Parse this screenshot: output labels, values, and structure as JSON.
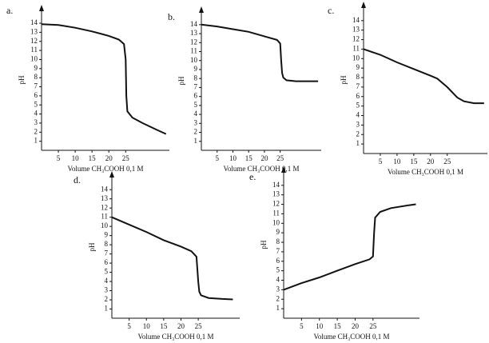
{
  "chart_data": [
    {
      "type": "line",
      "title": "a.",
      "xlabel": "Volume CH₃COOH 0,1 M",
      "ylabel": "pH",
      "color": "#111111",
      "x": [
        0,
        5,
        10,
        15,
        20,
        23,
        24.5,
        25,
        25.2,
        25.5,
        27,
        30,
        34,
        37
      ],
      "values": [
        13.9,
        13.8,
        13.5,
        13.1,
        12.6,
        12.2,
        11.7,
        10,
        6,
        4.3,
        3.6,
        3,
        2.3,
        1.8
      ],
      "xlim": [
        0,
        38
      ],
      "ylim": [
        0,
        15.5
      ],
      "xticks": [
        5,
        10,
        15,
        20,
        25
      ],
      "yticks": [
        1,
        2,
        3,
        4,
        5,
        6,
        7,
        8,
        9,
        10,
        11,
        12,
        13,
        14
      ]
    },
    {
      "type": "line",
      "title": "b.",
      "xlabel": "Volume CH₃COOH 0,1 M",
      "ylabel": "pH",
      "color": "#111111",
      "x": [
        0,
        5,
        10,
        15,
        20,
        24,
        25,
        25.3,
        25.6,
        26,
        27,
        30,
        35,
        37
      ],
      "values": [
        14,
        13.8,
        13.5,
        13.2,
        12.7,
        12.3,
        11.9,
        10,
        8.6,
        8.1,
        7.8,
        7.7,
        7.7,
        7.7
      ],
      "xlim": [
        0,
        38
      ],
      "ylim": [
        0,
        15.5
      ],
      "xticks": [
        5,
        10,
        15,
        20,
        25
      ],
      "yticks": [
        1,
        2,
        3,
        4,
        5,
        6,
        7,
        8,
        9,
        10,
        11,
        12,
        13,
        14
      ]
    },
    {
      "type": "line",
      "title": "c.",
      "xlabel": "Volume CH₃COOH 0,1 M",
      "ylabel": "pH",
      "color": "#111111",
      "x": [
        0,
        5,
        10,
        15,
        20,
        22,
        25,
        28,
        30,
        33,
        36
      ],
      "values": [
        11,
        10.4,
        9.6,
        8.9,
        8.2,
        7.9,
        7,
        5.9,
        5.5,
        5.3,
        5.3
      ],
      "xlim": [
        0,
        37
      ],
      "ylim": [
        0,
        15.5
      ],
      "xticks": [
        5,
        10,
        15,
        20,
        25
      ],
      "yticks": [
        1,
        2,
        3,
        4,
        5,
        6,
        7,
        8,
        9,
        10,
        11,
        12,
        13,
        14
      ]
    },
    {
      "type": "line",
      "title": "d.",
      "xlabel": "Volume CH₃COOH 0,1 M",
      "ylabel": "pH",
      "color": "#111111",
      "x": [
        0,
        5,
        10,
        15,
        20,
        23,
        24.5,
        25,
        25.3,
        25.8,
        28,
        32,
        35
      ],
      "values": [
        11,
        10.2,
        9.4,
        8.5,
        7.8,
        7.3,
        6.7,
        4,
        2.9,
        2.5,
        2.2,
        2.1,
        2.05
      ],
      "xlim": [
        0,
        37
      ],
      "ylim": [
        0,
        15.5
      ],
      "xticks": [
        5,
        10,
        15,
        20,
        25
      ],
      "yticks": [
        1,
        2,
        3,
        4,
        5,
        6,
        7,
        8,
        9,
        10,
        11,
        12,
        13,
        14
      ]
    },
    {
      "type": "line",
      "title": "e.",
      "xlabel": "Volume CH₃COOH 0,1 M",
      "ylabel": "pH",
      "color": "#111111",
      "x": [
        0,
        5,
        10,
        15,
        20,
        24,
        25,
        25.3,
        25.6,
        27,
        30,
        35,
        37
      ],
      "values": [
        3,
        3.7,
        4.3,
        5,
        5.7,
        6.2,
        6.5,
        9,
        10.6,
        11.2,
        11.6,
        11.9,
        12
      ],
      "xlim": [
        0,
        38
      ],
      "ylim": [
        0,
        15.5
      ],
      "xticks": [
        5,
        10,
        15,
        20,
        25
      ],
      "yticks": [
        1,
        2,
        3,
        4,
        5,
        6,
        7,
        8,
        9,
        10,
        11,
        12,
        13,
        14
      ]
    }
  ]
}
